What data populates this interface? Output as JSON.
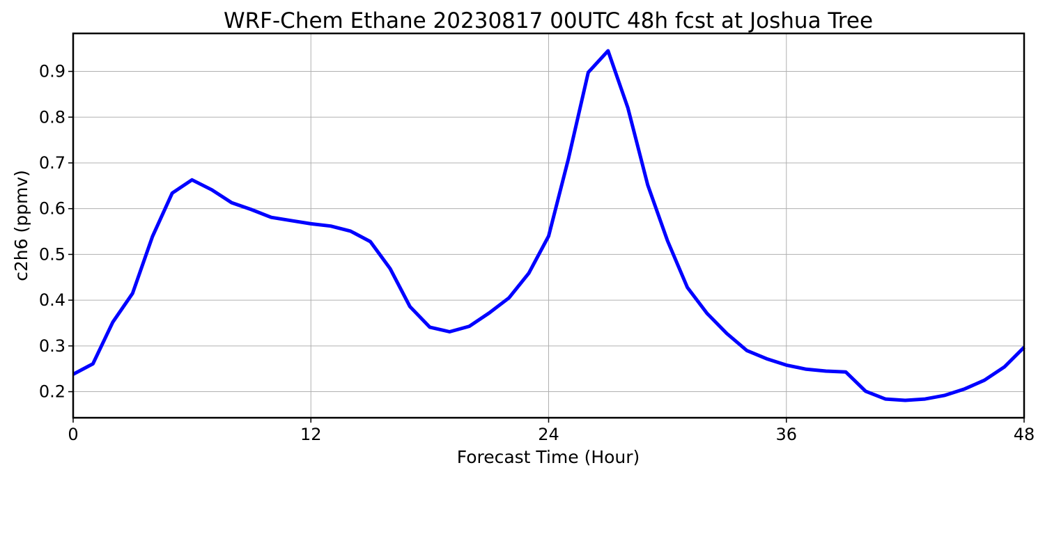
{
  "chart_data": {
    "type": "line",
    "title": "WRF-Chem Ethane  20230817 00UTC 48h fcst at Joshua Tree",
    "xlabel": "Forecast Time (Hour)",
    "ylabel": "c2h6  (ppmv)",
    "xlim": [
      0,
      48
    ],
    "ylim": [
      0.143,
      0.983
    ],
    "xticks": [
      0,
      12,
      24,
      36,
      48
    ],
    "xtick_labels": [
      "0",
      "12",
      "24",
      "36",
      "48"
    ],
    "yticks": [
      0.2,
      0.3,
      0.4,
      0.5,
      0.6,
      0.7,
      0.8,
      0.9
    ],
    "ytick_labels": [
      "0.2",
      "0.3",
      "0.4",
      "0.5",
      "0.6",
      "0.7",
      "0.8",
      "0.9"
    ],
    "grid": true,
    "series": [
      {
        "color": "#0000ff",
        "x": [
          0,
          1,
          2,
          3,
          4,
          5,
          6,
          7,
          8,
          9,
          10,
          11,
          12,
          13,
          14,
          15,
          16,
          17,
          18,
          19,
          20,
          21,
          22,
          23,
          24,
          25,
          26,
          27,
          28,
          29,
          30,
          31,
          32,
          33,
          34,
          35,
          36,
          37,
          38,
          39,
          40,
          41,
          42,
          43,
          44,
          45,
          46,
          47,
          48
        ],
        "y": [
          0.238,
          0.261,
          0.352,
          0.415,
          0.539,
          0.634,
          0.663,
          0.641,
          0.613,
          0.598,
          0.581,
          0.574,
          0.567,
          0.562,
          0.551,
          0.528,
          0.469,
          0.386,
          0.341,
          0.331,
          0.343,
          0.372,
          0.405,
          0.459,
          0.54,
          0.709,
          0.898,
          0.945,
          0.82,
          0.652,
          0.53,
          0.428,
          0.371,
          0.327,
          0.29,
          0.272,
          0.258,
          0.249,
          0.245,
          0.243,
          0.201,
          0.184,
          0.181,
          0.184,
          0.192,
          0.206,
          0.225,
          0.254,
          0.297
        ]
      }
    ]
  }
}
